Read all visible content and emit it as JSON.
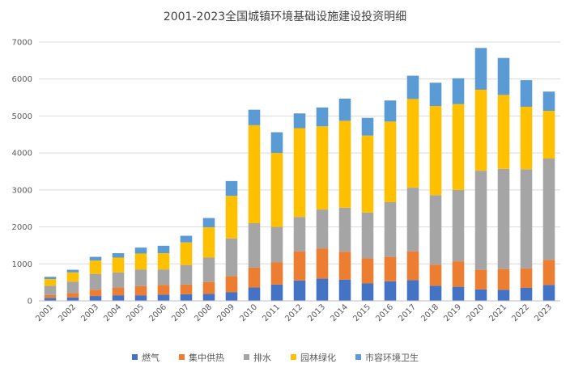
{
  "chart_data": {
    "type": "bar",
    "stacked": true,
    "title": "2001-2023全国城镇环境基础设施建设投资明细",
    "categories": [
      "2001",
      "2002",
      "2003",
      "2004",
      "2005",
      "2006",
      "2007",
      "2008",
      "2009",
      "2010",
      "2011",
      "2012",
      "2013",
      "2014",
      "2015",
      "2016",
      "2017",
      "2018",
      "2019",
      "2020",
      "2021",
      "2022",
      "2023"
    ],
    "ylim": [
      0,
      7000
    ],
    "yticks": [
      0,
      1000,
      2000,
      3000,
      4000,
      5000,
      6000,
      7000
    ],
    "grid": true,
    "legend_position": "bottom",
    "series": [
      {
        "name": "燃气",
        "color": "#4472c4",
        "values": [
          75,
          90,
          130,
          150,
          150,
          170,
          180,
          190,
          230,
          360,
          440,
          550,
          600,
          570,
          470,
          530,
          560,
          410,
          380,
          310,
          300,
          350,
          430
        ]
      },
      {
        "name": "集中供热",
        "color": "#ed7d31",
        "values": [
          80,
          120,
          170,
          200,
          250,
          260,
          260,
          320,
          440,
          540,
          600,
          790,
          820,
          760,
          680,
          660,
          780,
          570,
          690,
          530,
          560,
          530,
          680
        ]
      },
      {
        "name": "排水",
        "color": "#a5a5a5",
        "values": [
          255,
          310,
          430,
          420,
          450,
          420,
          530,
          660,
          1020,
          1200,
          960,
          930,
          1050,
          1190,
          1240,
          1480,
          1720,
          1880,
          1930,
          2680,
          2710,
          2680,
          2740
        ]
      },
      {
        "name": "园林绿化",
        "color": "#ffc000",
        "values": [
          180,
          250,
          360,
          400,
          430,
          440,
          610,
          820,
          1150,
          2650,
          2000,
          2400,
          2250,
          2350,
          2080,
          2180,
          2400,
          2410,
          2320,
          2190,
          2000,
          1690,
          1290
        ]
      },
      {
        "name": "市容环境卫生",
        "color": "#5b9bd5",
        "values": [
          60,
          70,
          100,
          120,
          160,
          200,
          180,
          250,
          400,
          420,
          560,
          400,
          510,
          600,
          480,
          570,
          630,
          630,
          700,
          1130,
          1000,
          720,
          520
        ]
      }
    ]
  }
}
